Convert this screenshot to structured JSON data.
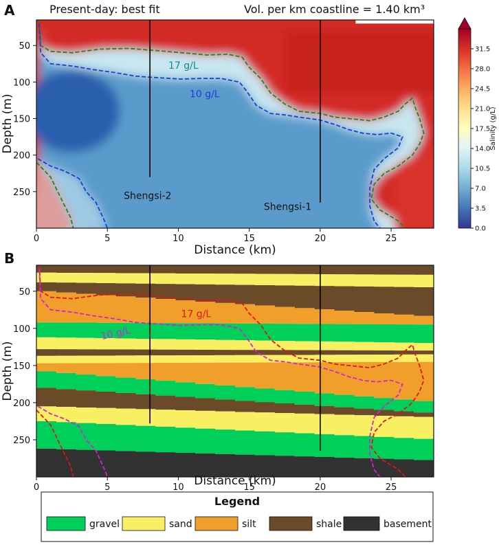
{
  "chart_data": [
    {
      "panel_label": "A",
      "type": "heatmap",
      "title_left": "Present-day: best fit",
      "title_right": "Vol. per km coastline = 1.40 km³",
      "xlabel": "Distance (km)",
      "ylabel": "Depth (m)",
      "xlim": [
        0,
        28
      ],
      "ylim": [
        300,
        15
      ],
      "x_ticks": [
        0,
        5,
        10,
        15,
        20,
        25
      ],
      "y_ticks": [
        50,
        100,
        150,
        200,
        250
      ],
      "colorbar": {
        "label": "Salinity (g/L)",
        "range": [
          0,
          35
        ],
        "ticks": [
          "0.0",
          "3.5",
          "7.0",
          "10.5",
          "14.0",
          "17.5",
          "21.0",
          "24.5",
          "28.0",
          "31.5"
        ],
        "colormap": "RdYlBu_r"
      },
      "wells": [
        {
          "name": "Shengsi-2",
          "x": 8.0,
          "depth_top": 15,
          "depth_bottom": 230
        },
        {
          "name": "Shengsi-1",
          "x": 20.0,
          "depth_top": 15,
          "depth_bottom": 265
        }
      ],
      "contours": [
        {
          "label": "17 g/L",
          "color": "#1a8a1a",
          "label_pos": [
            9.3,
            82
          ],
          "label_color": "#138a8a",
          "segments": [
            [
              [
                0.2,
                15
              ],
              [
                0.3,
                50
              ],
              [
                1,
                58
              ],
              [
                2.5,
                60
              ],
              [
                4.5,
                55
              ],
              [
                6.5,
                54
              ],
              [
                8.5,
                57
              ],
              [
                10.3,
                60
              ],
              [
                12,
                63
              ],
              [
                13.5,
                62
              ],
              [
                14.5,
                66
              ],
              [
                15,
                80
              ],
              [
                15.8,
                95
              ],
              [
                16.5,
                115
              ],
              [
                17.5,
                130
              ],
              [
                18.5,
                140
              ],
              [
                20,
                143
              ],
              [
                21,
                148
              ],
              [
                22,
                150
              ],
              [
                23.5,
                153
              ],
              [
                24.5,
                148
              ],
              [
                25.5,
                140
              ],
              [
                26,
                130
              ],
              [
                26.5,
                122
              ],
              [
                26.7,
                135
              ],
              [
                27,
                150
              ],
              [
                27.3,
                170
              ],
              [
                27,
                185
              ],
              [
                26.5,
                200
              ],
              [
                25.5,
                215
              ],
              [
                24.5,
                225
              ],
              [
                23.8,
                240
              ],
              [
                23.6,
                260
              ],
              [
                24.2,
                275
              ],
              [
                25.5,
                290
              ],
              [
                26,
                300
              ]
            ],
            [
              [
                0,
                210
              ],
              [
                1,
                230
              ],
              [
                1.8,
                262
              ],
              [
                2.4,
                285
              ],
              [
                2.6,
                300
              ]
            ]
          ]
        },
        {
          "label": "10 g/L",
          "color": "#1a3fd6",
          "label_pos": [
            10.8,
            121
          ],
          "label_color": "#1a3fd6",
          "segments": [
            [
              [
                0.2,
                20
              ],
              [
                0.3,
                60
              ],
              [
                1,
                75
              ],
              [
                2.5,
                78
              ],
              [
                4,
                83
              ],
              [
                5.5,
                87
              ],
              [
                7,
                92
              ],
              [
                8.5,
                94
              ],
              [
                10.2,
                96
              ],
              [
                11.5,
                95
              ],
              [
                13,
                95
              ],
              [
                14.3,
                100
              ],
              [
                14.8,
                112
              ],
              [
                15.5,
                132
              ],
              [
                16.5,
                143
              ],
              [
                17.5,
                145
              ],
              [
                18.5,
                148
              ],
              [
                20,
                152
              ],
              [
                21,
                158
              ],
              [
                22,
                165
              ],
              [
                23,
                170
              ],
              [
                24,
                172
              ],
              [
                25,
                170
              ],
              [
                25.8,
                175
              ],
              [
                25.5,
                190
              ],
              [
                24.5,
                205
              ],
              [
                23.8,
                220
              ],
              [
                23.5,
                245
              ],
              [
                23.5,
                270
              ],
              [
                23.8,
                290
              ],
              [
                24.2,
                300
              ]
            ],
            [
              [
                0.1,
                205
              ],
              [
                1,
                215
              ],
              [
                2,
                222
              ],
              [
                3,
                232
              ],
              [
                3.5,
                250
              ],
              [
                4.2,
                265
              ],
              [
                4.8,
                290
              ],
              [
                5,
                300
              ]
            ]
          ]
        }
      ]
    },
    {
      "panel_label": "B",
      "type": "area",
      "xlabel": "Distance  (km)",
      "ylabel": "Depth (m)",
      "xlim": [
        0,
        28
      ],
      "ylim": [
        300,
        15
      ],
      "x_ticks": [
        0,
        5,
        10,
        15,
        20,
        25
      ],
      "y_ticks": [
        50,
        100,
        150,
        200,
        250
      ],
      "layers": [
        "shale",
        "sand",
        "shale",
        "silt",
        "gravel",
        "sand",
        "shale",
        "sand",
        "silt",
        "gravel",
        "shale",
        "sand",
        "gravel",
        "basement"
      ],
      "layer_boundaries_depth": [
        [
          15,
          10
        ],
        [
          25,
          28
        ],
        [
          38,
          45
        ],
        [
          50,
          85
        ],
        [
          92,
          95
        ],
        [
          112,
          120
        ],
        [
          128,
          130
        ],
        [
          137,
          135
        ],
        [
          147,
          145
        ],
        [
          158,
          200
        ],
        [
          180,
          215
        ],
        [
          205,
          220
        ],
        [
          225,
          250
        ],
        [
          262,
          278
        ]
      ],
      "wells": [
        {
          "x": 8.0,
          "depth_top": 15,
          "depth_bottom": 228
        },
        {
          "x": 20.0,
          "depth_top": 15,
          "depth_bottom": 265
        }
      ],
      "contours": [
        {
          "label": "17 g/L",
          "color": "#e01515",
          "label_pos": [
            10.2,
            85
          ],
          "label_color": "#e01515",
          "segments": [
            [
              [
                0.2,
                15
              ],
              [
                0.3,
                50
              ],
              [
                1,
                58
              ],
              [
                2.5,
                60
              ],
              [
                4.5,
                55
              ],
              [
                6.5,
                54
              ],
              [
                8.5,
                57
              ],
              [
                10.3,
                60
              ],
              [
                12,
                63
              ],
              [
                13.5,
                62
              ],
              [
                14.5,
                66
              ],
              [
                15,
                80
              ],
              [
                15.8,
                95
              ],
              [
                16.5,
                115
              ],
              [
                17.5,
                130
              ],
              [
                18.5,
                140
              ],
              [
                20,
                143
              ],
              [
                21,
                148
              ],
              [
                22,
                150
              ],
              [
                23.5,
                153
              ],
              [
                24.5,
                148
              ],
              [
                25.5,
                140
              ],
              [
                26,
                130
              ],
              [
                26.5,
                122
              ],
              [
                26.7,
                135
              ],
              [
                27,
                150
              ],
              [
                27.3,
                170
              ],
              [
                27,
                185
              ],
              [
                26.5,
                200
              ],
              [
                25.5,
                215
              ],
              [
                24.5,
                225
              ],
              [
                23.8,
                240
              ],
              [
                23.6,
                260
              ],
              [
                24.2,
                275
              ],
              [
                25.5,
                290
              ],
              [
                26,
                300
              ]
            ],
            [
              [
                0,
                210
              ],
              [
                1,
                230
              ],
              [
                1.8,
                262
              ],
              [
                2.4,
                285
              ],
              [
                2.6,
                300
              ]
            ]
          ]
        },
        {
          "label": "10 g/L",
          "color": "#d422d4",
          "label_pos": [
            4.6,
            115
          ],
          "label_color": "#d422d4",
          "segments": [
            [
              [
                0.2,
                20
              ],
              [
                0.3,
                60
              ],
              [
                1,
                75
              ],
              [
                2.5,
                78
              ],
              [
                4,
                83
              ],
              [
                5.5,
                87
              ],
              [
                7,
                92
              ],
              [
                8.5,
                94
              ],
              [
                10.2,
                96
              ],
              [
                11.5,
                95
              ],
              [
                13,
                95
              ],
              [
                14.3,
                100
              ],
              [
                14.8,
                112
              ],
              [
                15.5,
                132
              ],
              [
                16.5,
                143
              ],
              [
                17.5,
                145
              ],
              [
                18.5,
                148
              ],
              [
                20,
                152
              ],
              [
                21,
                158
              ],
              [
                22,
                165
              ],
              [
                23,
                170
              ],
              [
                24,
                172
              ],
              [
                25,
                170
              ],
              [
                25.8,
                175
              ],
              [
                25.5,
                190
              ],
              [
                24.5,
                205
              ],
              [
                23.8,
                220
              ],
              [
                23.5,
                245
              ],
              [
                23.5,
                270
              ],
              [
                23.8,
                290
              ],
              [
                24.2,
                300
              ]
            ],
            [
              [
                0.1,
                205
              ],
              [
                1,
                215
              ],
              [
                2,
                222
              ],
              [
                3,
                232
              ],
              [
                3.5,
                250
              ],
              [
                4.2,
                265
              ],
              [
                4.8,
                290
              ],
              [
                5,
                300
              ]
            ]
          ]
        }
      ],
      "legend": {
        "title": "Legend",
        "placement": "bottom",
        "items": [
          {
            "label": "gravel",
            "color": "#00d05a"
          },
          {
            "label": "sand",
            "color": "#f9ef62"
          },
          {
            "label": "silt",
            "color": "#f0a02a"
          },
          {
            "label": "shale",
            "color": "#6b4a2a"
          },
          {
            "label": "basement",
            "color": "#323232"
          }
        ]
      }
    }
  ]
}
